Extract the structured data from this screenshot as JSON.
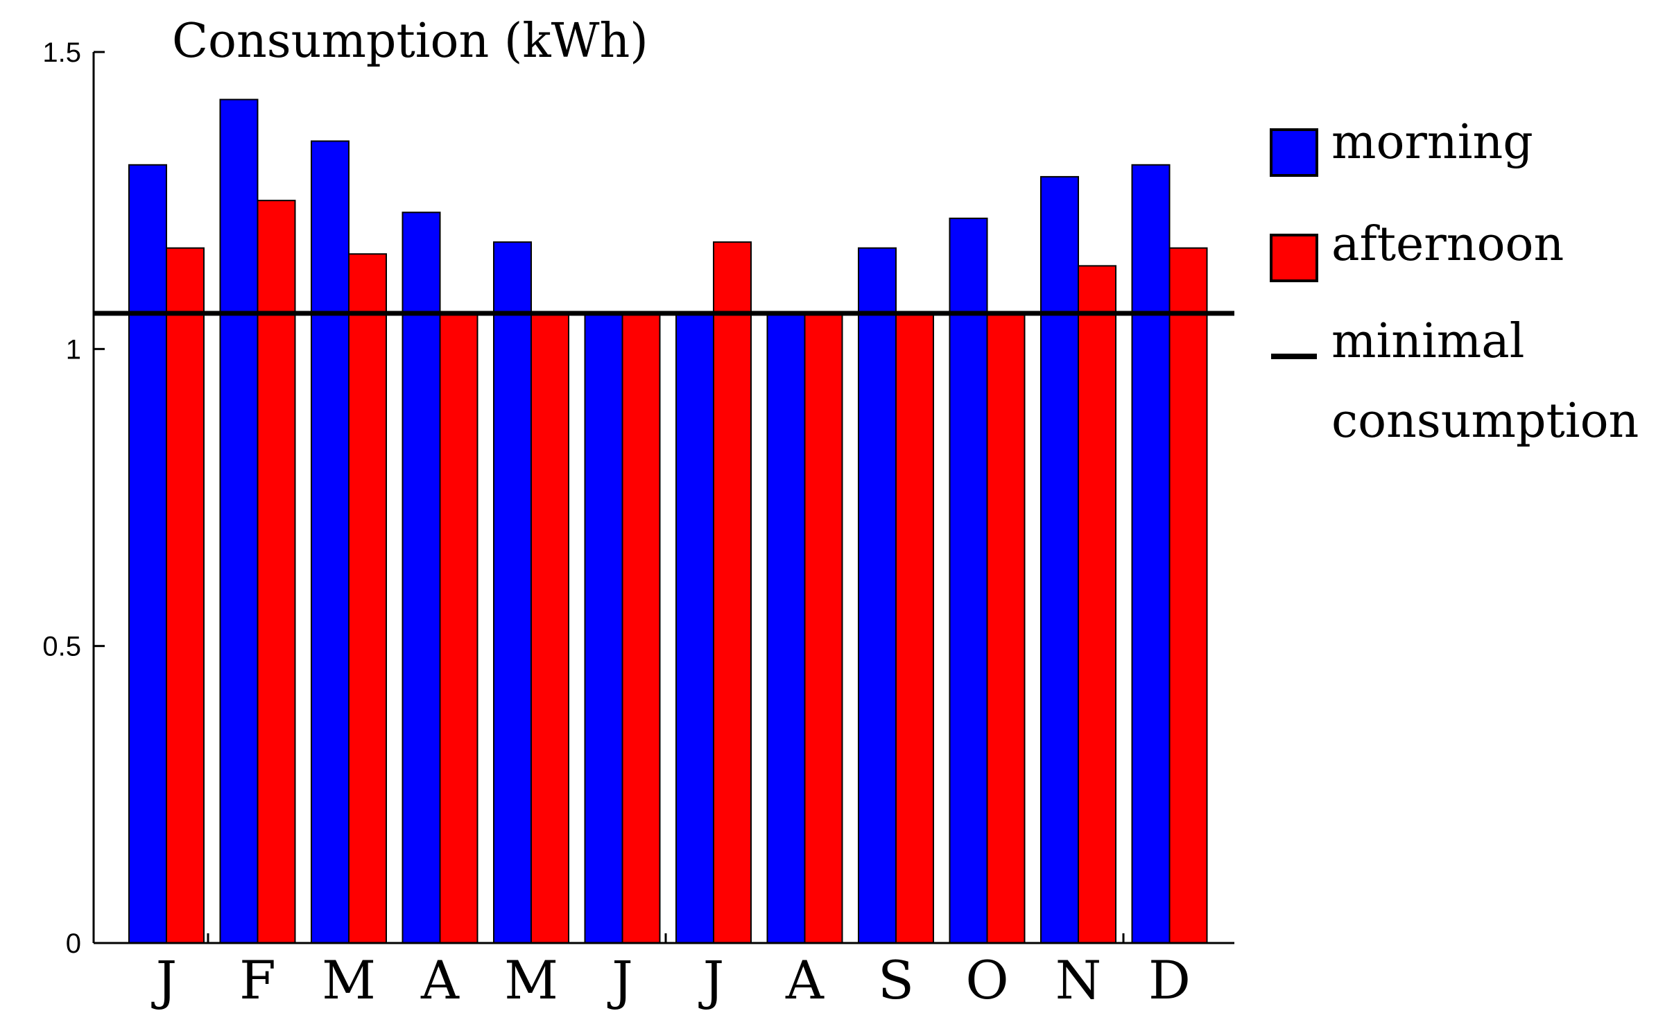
{
  "chart_data": {
    "type": "bar",
    "title": "Consumption (kWh)",
    "xlabel": "",
    "ylabel": "",
    "ylim": [
      0,
      1.5
    ],
    "yticks": [
      "0",
      "0.5",
      "1",
      "1.5"
    ],
    "yticks_values": [
      0,
      0.5,
      1,
      1.5
    ],
    "categories": [
      "J",
      "F",
      "M",
      "A",
      "M",
      "J",
      "J",
      "A",
      "S",
      "O",
      "N",
      "D"
    ],
    "series": [
      {
        "name": "morning",
        "color": "#0000ff",
        "values": [
          1.31,
          1.42,
          1.35,
          1.23,
          1.18,
          1.06,
          1.06,
          1.06,
          1.17,
          1.22,
          1.29,
          1.31
        ]
      },
      {
        "name": "afternoon",
        "color": "#ff0000",
        "values": [
          1.17,
          1.25,
          1.16,
          1.06,
          1.06,
          1.06,
          1.18,
          1.06,
          1.06,
          1.06,
          1.14,
          1.17
        ]
      }
    ],
    "reference_line": {
      "name": "minimal consumption",
      "value": 1.06,
      "color": "#000000"
    },
    "legend": {
      "position": "right",
      "entries": [
        "morning",
        "afternoon",
        "minimal",
        "consumption"
      ]
    },
    "grid": false
  }
}
